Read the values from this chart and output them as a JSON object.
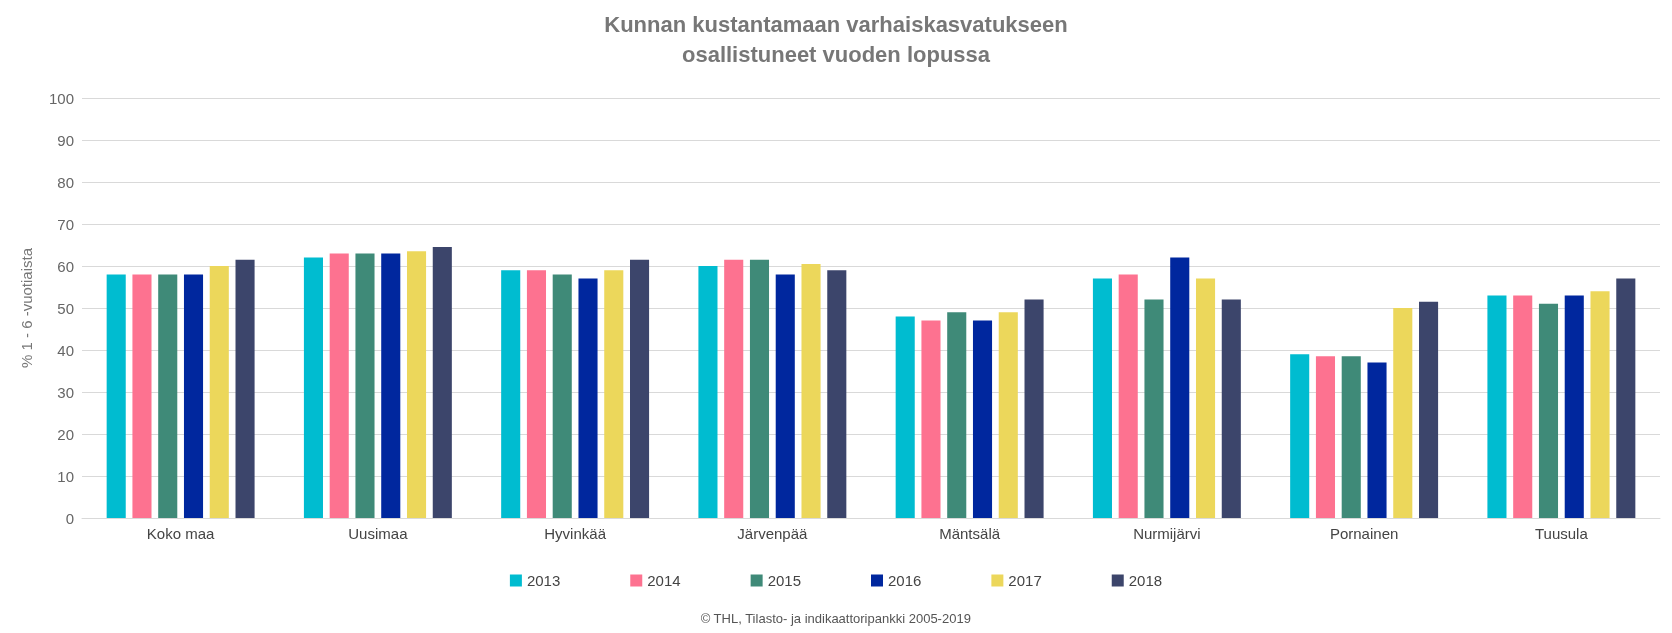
{
  "chart_data": {
    "type": "bar",
    "title": "Kunnan kustantamaan varhaiskasvatukseen\nosallistuneet vuoden lopussa",
    "ylabel": "% 1 - 6 -vuotiaista",
    "categories": [
      "Koko maa",
      "Uusimaa",
      "Hyvinkää",
      "Järvenpää",
      "Mäntsälä",
      "Nurmijärvi",
      "Pornainen",
      "Tuusula"
    ],
    "series": [
      {
        "name": "2013",
        "color": "#00bcd0",
        "values": [
          58,
          62,
          59,
          60,
          48,
          57,
          39,
          53
        ]
      },
      {
        "name": "2014",
        "color": "#fd7290",
        "values": [
          58,
          63,
          59,
          61.5,
          47,
          58,
          38.5,
          53
        ]
      },
      {
        "name": "2015",
        "color": "#3f8a78",
        "values": [
          58,
          63,
          58,
          61.5,
          49,
          52,
          38.5,
          51
        ]
      },
      {
        "name": "2016",
        "color": "#00279e",
        "values": [
          58,
          63,
          57,
          58,
          47,
          62,
          37,
          53
        ]
      },
      {
        "name": "2017",
        "color": "#ecd75b",
        "values": [
          60,
          63.5,
          59,
          60.5,
          49,
          57,
          50,
          54
        ]
      },
      {
        "name": "2018",
        "color": "#3c456b",
        "values": [
          61.5,
          64.5,
          61.5,
          59,
          52,
          52,
          51.5,
          57
        ]
      }
    ],
    "ylim": [
      0,
      100
    ],
    "yticks": [
      0,
      10,
      20,
      30,
      40,
      50,
      60,
      70,
      80,
      90,
      100
    ],
    "grid": "y",
    "legend": "bottom",
    "annotations": [
      "© THL, Tilasto- ja indikaattoripankki 2005-2019"
    ]
  }
}
